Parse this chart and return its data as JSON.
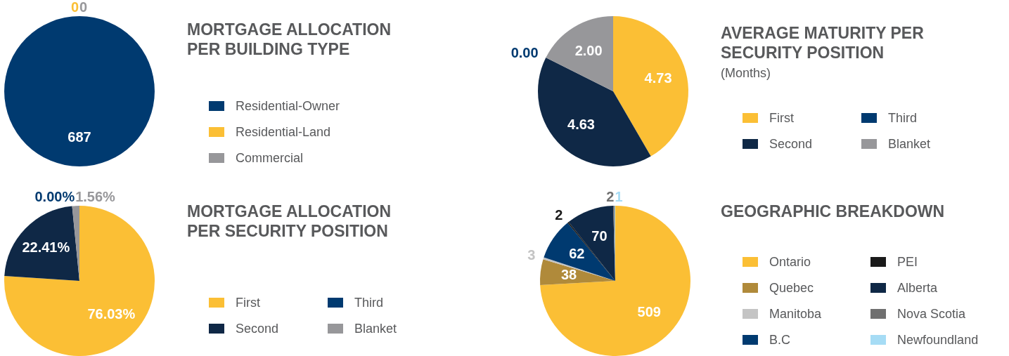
{
  "chart_data": [
    {
      "type": "pie",
      "title": "MORTGAGE ALLOCATION PER BUILDING TYPE",
      "categories": [
        "Residential-Owner",
        "Residential-Land",
        "Commercial"
      ],
      "values": [
        687,
        0,
        0
      ],
      "value_labels": [
        "687",
        "0",
        "0"
      ],
      "colors": [
        "#003a70",
        "#fbbf35",
        "#97979a"
      ],
      "legend": "right"
    },
    {
      "type": "pie",
      "title": "AVERAGE MATURITY PER SECURITY POSITION",
      "subtitle": "(Months)",
      "categories": [
        "First",
        "Second",
        "Third",
        "Blanket"
      ],
      "values": [
        4.73,
        4.63,
        0,
        2
      ],
      "value_labels": [
        "4.73",
        "4.63",
        "0.00",
        "2.00"
      ],
      "colors": [
        "#fbbf35",
        "#0f2846",
        "#003a70",
        "#97979a"
      ],
      "legend": "right"
    },
    {
      "type": "pie",
      "title": "MORTGAGE ALLOCATION PER SECURITY POSITION",
      "categories": [
        "First",
        "Second",
        "Third",
        "Blanket"
      ],
      "values": [
        76.03,
        22.41,
        0,
        1.56
      ],
      "value_labels": [
        "76.03%",
        "22.41%",
        "0.00%",
        "1.56%"
      ],
      "colors": [
        "#fbbf35",
        "#0f2846",
        "#003a70",
        "#97979a"
      ],
      "legend": "right"
    },
    {
      "type": "pie",
      "title": "GEOGRAPHIC BREAKDOWN",
      "categories": [
        "Ontario",
        "Quebec",
        "Manitoba",
        "B.C",
        "PEI",
        "Alberta",
        "Nova Scotia",
        "Newfoundland"
      ],
      "values": [
        509,
        38,
        3,
        62,
        2,
        70,
        2,
        1
      ],
      "value_labels": [
        "509",
        "38",
        "3",
        "62",
        "2",
        "70",
        "2",
        "1"
      ],
      "colors": [
        "#fbbf35",
        "#b08a3a",
        "#c4c4c4",
        "#003a70",
        "#1a1a1a",
        "#0f2846",
        "#707070",
        "#a6dcf5"
      ],
      "legend": "right"
    }
  ]
}
